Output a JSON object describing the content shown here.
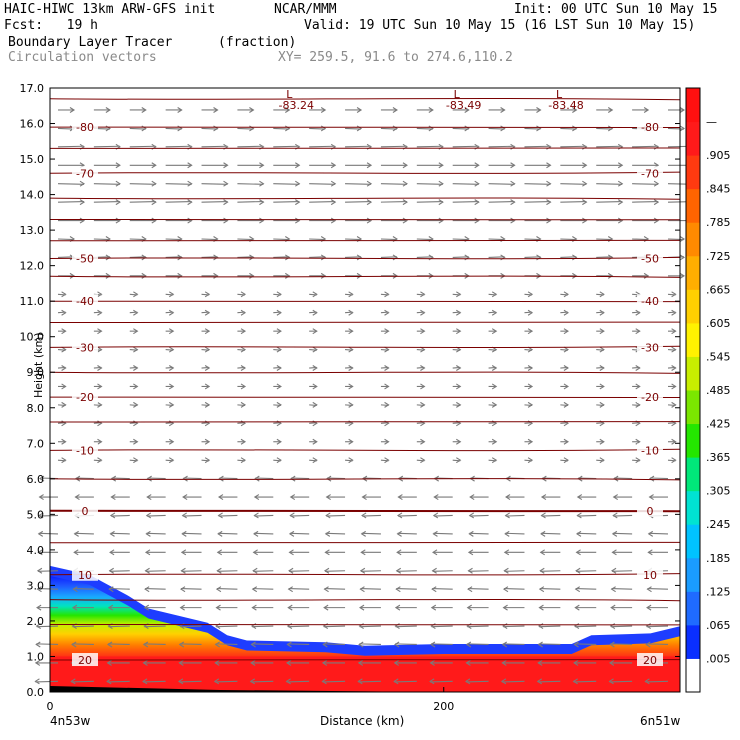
{
  "header": {
    "model": "HAIC-HIWC 13km ARW-GFS init",
    "org": "NCAR/MMM",
    "init": "Init: 00 UTC Sun 10 May 15",
    "fcst": "Fcst:   19 h",
    "valid": "Valid: 19 UTC Sun 10 May 15 (16 LST Sun 10 May 15)",
    "field": "Boundary Layer Tracer",
    "units": "(fraction)",
    "overlay": "Circulation vectors",
    "xy": "XY= 259.5, 91.6 to 274.6,110.2"
  },
  "chart_data": {
    "type": "heatmap",
    "title": "Boundary Layer Tracer (fraction)",
    "xlabel": "Distance (km)",
    "ylabel": "Height (km)",
    "x_ticks": [
      0,
      200
    ],
    "xlim": [
      0,
      320
    ],
    "x_end_labels": [
      "4n53w",
      "6n51w"
    ],
    "ylim": [
      0,
      17
    ],
    "y_ticks": [
      "0.0",
      "1.0",
      "2.0",
      "3.0",
      "4.0",
      "5.0",
      "6.0",
      "7.0",
      "8.0",
      "9.0",
      "10.0",
      "11.0",
      "12.0",
      "13.0",
      "14.0",
      "15.0",
      "16.0",
      "17.0"
    ],
    "colorbar_labels": [
      ".005",
      ".065",
      ".125",
      ".185",
      ".245",
      ".305",
      ".365",
      ".425",
      ".485",
      ".545",
      ".605",
      ".665",
      ".725",
      ".785",
      ".845",
      ".905",
      "—"
    ],
    "colorbar_colors": [
      "#ffffff",
      "#0a2fff",
      "#1f6bff",
      "#1a9cff",
      "#00c3ff",
      "#00e3d2",
      "#00e87a",
      "#24e600",
      "#7be600",
      "#c8ee00",
      "#fff200",
      "#ffd000",
      "#ffae00",
      "#ff8a00",
      "#ff6400",
      "#ff3a10",
      "#ff1a1a",
      "#ff1010"
    ],
    "tracer_top_km": [
      [
        0,
        3.55
      ],
      [
        20,
        3.3
      ],
      [
        40,
        2.7
      ],
      [
        50,
        2.35
      ],
      [
        65,
        2.15
      ],
      [
        80,
        1.95
      ],
      [
        90,
        1.6
      ],
      [
        100,
        1.45
      ],
      [
        140,
        1.4
      ],
      [
        160,
        1.3
      ],
      [
        200,
        1.35
      ],
      [
        240,
        1.35
      ],
      [
        265,
        1.35
      ],
      [
        275,
        1.6
      ],
      [
        305,
        1.65
      ],
      [
        320,
        1.85
      ]
    ],
    "temperature_contours": [
      {
        "label": "-80",
        "level_km": 15.9
      },
      {
        "label": "-70",
        "level_km": 14.6
      },
      {
        "label": "-50",
        "level_km": 12.2
      },
      {
        "label": "-40",
        "level_km": 11.0
      },
      {
        "label": "-30",
        "level_km": 9.7
      },
      {
        "label": "-20",
        "level_km": 8.3
      },
      {
        "label": "-10",
        "level_km": 6.8
      },
      {
        "label": "0",
        "level_km": 5.1
      },
      {
        "label": "10",
        "level_km": 3.3
      },
      {
        "label": "20",
        "level_km": 0.9
      }
    ],
    "extreme_labels": [
      {
        "label": "L",
        "value": "-83.24",
        "x_km": 120
      },
      {
        "label": "L",
        "value": "-83.49",
        "x_km": 205
      },
      {
        "label": "L",
        "value": "-83.48",
        "x_km": 257
      }
    ],
    "wind_vectors": "westerly aloft (strongest 13–15.5 km), easterly below 6 km"
  }
}
